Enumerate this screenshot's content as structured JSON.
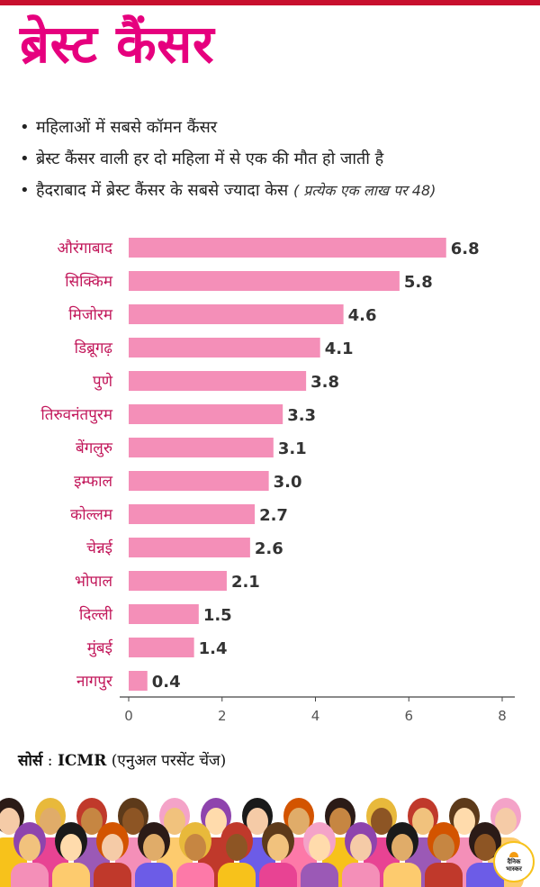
{
  "header": {
    "title": "ब्रेस्ट कैंसर"
  },
  "bullets": [
    {
      "text": "महिलाओं में सबसे कॉमन कैंसर"
    },
    {
      "text": "ब्रेस्ट कैंसर वाली हर दो महिला में से एक की मौत हो जाती है"
    },
    {
      "text": "हैदराबाद में ब्रेस्ट कैंसर के सबसे ज्यादा केस",
      "note": "( प्रत्येक एक लाख पर 48)"
    }
  ],
  "chart_data": {
    "type": "bar",
    "orientation": "horizontal",
    "categories": [
      "औरंगाबाद",
      "सिक्किम",
      "मिजोरम",
      "डिब्रूगढ़",
      "पुणे",
      "तिरुवनंतपुरम",
      "बेंगलुरु",
      "इम्फाल",
      "कोल्लम",
      "चेन्नई",
      "भोपाल",
      "दिल्ली",
      "मुंबई",
      "नागपुर"
    ],
    "values": [
      6.8,
      5.8,
      4.6,
      4.1,
      3.8,
      3.3,
      3.1,
      3.0,
      2.7,
      2.6,
      2.1,
      1.5,
      1.4,
      0.4
    ],
    "value_labels": [
      "6.8",
      "5.8",
      "4.6",
      "4.1",
      "3.8",
      "3.3",
      "3.1",
      "3.0",
      "2.7",
      "2.6",
      "2.1",
      "1.5",
      "1.4",
      "0.4"
    ],
    "xlim": [
      0,
      8
    ],
    "xticks": [
      "0",
      "2",
      "4",
      "6",
      "8"
    ],
    "bar_color": "#f48fb8",
    "label_color": "#c2185b",
    "grid": false,
    "legend": "none"
  },
  "source": {
    "label": "सोर्स",
    "separator": " : ",
    "org": "ICMR",
    "detail": "(एनुअल परसेंट चेंज)"
  },
  "logo": {
    "line1": "दैनिक",
    "line2": "भास्कर"
  },
  "colors": {
    "accent": "#e6007e",
    "top_bar": "#c8102e"
  }
}
